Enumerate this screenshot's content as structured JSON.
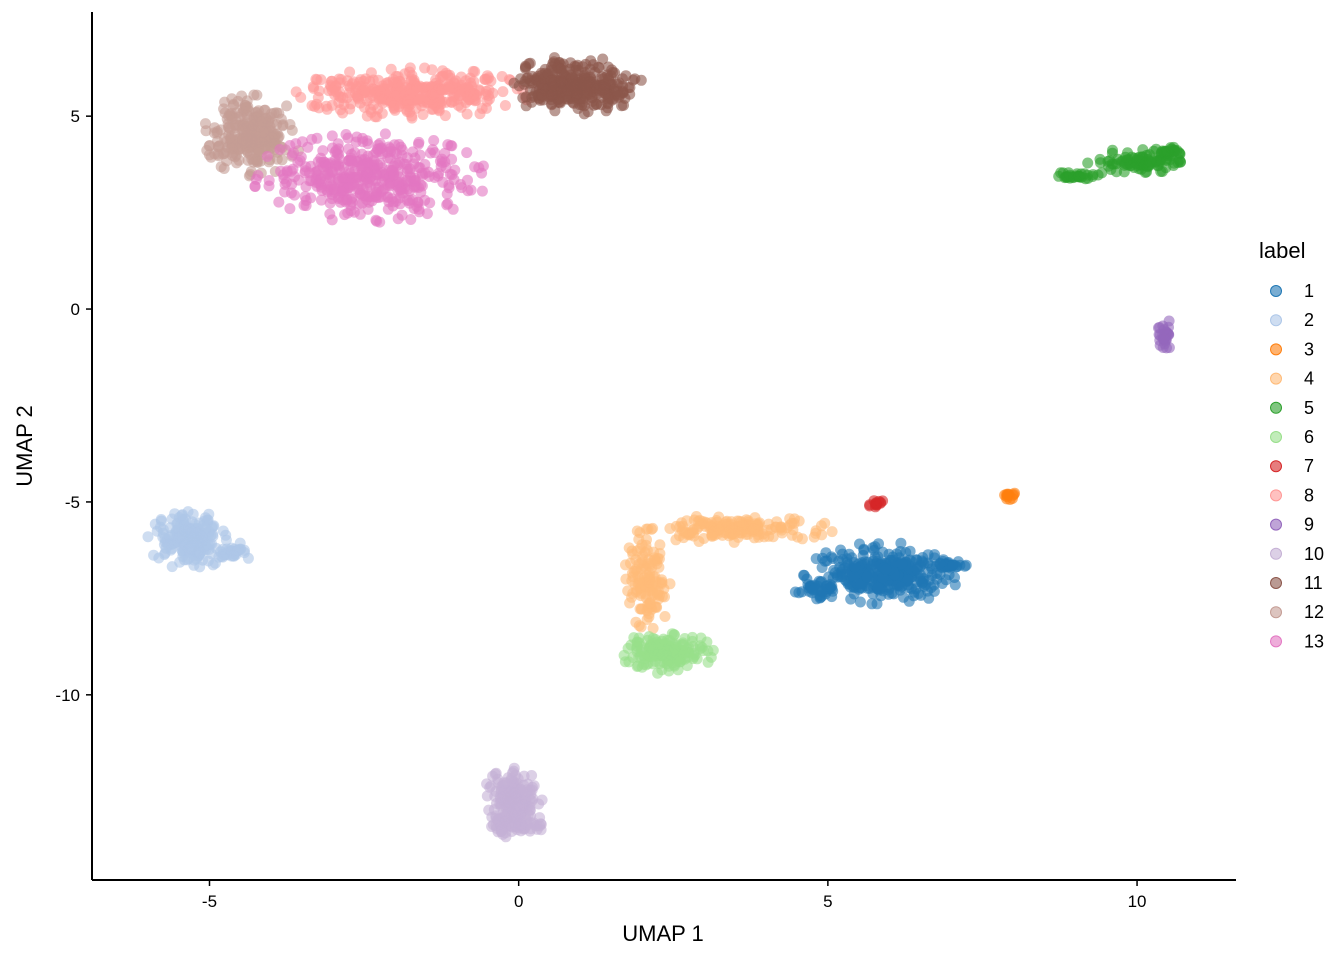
{
  "chart_data": {
    "type": "scatter",
    "title": "",
    "xlabel": "UMAP 1",
    "ylabel": "UMAP 2",
    "xlim": [
      -6.9,
      11.6
    ],
    "ylim": [
      -14.8,
      7.7
    ],
    "xticks": [
      -5,
      0,
      5,
      10
    ],
    "xtick_labels": [
      "-5",
      "0",
      "5",
      "10"
    ],
    "yticks": [
      -10,
      -5,
      0,
      5
    ],
    "ytick_labels": [
      "-10",
      "-5",
      "0",
      "5"
    ],
    "grid": false,
    "legend": {
      "title": "label",
      "position": "right"
    },
    "point_alpha": 0.6,
    "series": [
      {
        "name": "1",
        "color": "#1f77b4",
        "clusters": [
          {
            "cx": 5.9,
            "cy": -6.85,
            "rx": 1.25,
            "ry": 0.8,
            "n": 320
          },
          {
            "cx": 4.8,
            "cy": -7.2,
            "rx": 0.4,
            "ry": 0.35,
            "n": 40
          },
          {
            "cx": 6.9,
            "cy": -6.6,
            "rx": 0.35,
            "ry": 0.15,
            "n": 30
          }
        ]
      },
      {
        "name": "2",
        "color": "#aec7e8",
        "clusters": [
          {
            "cx": -5.3,
            "cy": -6.0,
            "rx": 0.7,
            "ry": 0.75,
            "n": 200
          },
          {
            "cx": -4.6,
            "cy": -6.3,
            "rx": 0.3,
            "ry": 0.25,
            "n": 30
          }
        ]
      },
      {
        "name": "3",
        "color": "#ff7f0e",
        "clusters": [
          {
            "cx": 7.95,
            "cy": -4.85,
            "rx": 0.12,
            "ry": 0.1,
            "n": 12
          }
        ]
      },
      {
        "name": "4",
        "color": "#ffbb78",
        "clusters": [
          {
            "cx": 3.5,
            "cy": -5.7,
            "rx": 1.6,
            "ry": 0.35,
            "n": 160
          },
          {
            "cx": 2.1,
            "cy": -7.0,
            "rx": 0.4,
            "ry": 1.3,
            "n": 120
          }
        ]
      },
      {
        "name": "5",
        "color": "#2ca02c",
        "clusters": [
          {
            "cx": 10.0,
            "cy": 3.8,
            "rx": 0.9,
            "ry": 0.35,
            "n": 90
          },
          {
            "cx": 9.0,
            "cy": 3.45,
            "rx": 0.4,
            "ry": 0.1,
            "n": 30
          },
          {
            "cx": 10.5,
            "cy": 4.05,
            "rx": 0.25,
            "ry": 0.15,
            "n": 25
          }
        ]
      },
      {
        "name": "6",
        "color": "#98df8a",
        "clusters": [
          {
            "cx": 2.4,
            "cy": -8.9,
            "rx": 0.75,
            "ry": 0.55,
            "n": 160
          }
        ]
      },
      {
        "name": "7",
        "color": "#d62728",
        "clusters": [
          {
            "cx": 5.8,
            "cy": -5.05,
            "rx": 0.15,
            "ry": 0.1,
            "n": 14
          }
        ]
      },
      {
        "name": "8",
        "color": "#ff9896",
        "clusters": [
          {
            "cx": -1.7,
            "cy": 5.6,
            "rx": 1.9,
            "ry": 0.65,
            "n": 360
          }
        ]
      },
      {
        "name": "9",
        "color": "#9467bd",
        "clusters": [
          {
            "cx": 10.45,
            "cy": -0.6,
            "rx": 0.12,
            "ry": 0.5,
            "n": 30
          }
        ]
      },
      {
        "name": "10",
        "color": "#c5b0d5",
        "clusters": [
          {
            "cx": -0.1,
            "cy": -12.8,
            "rx": 0.5,
            "ry": 0.9,
            "n": 180
          },
          {
            "cx": 0.0,
            "cy": -13.4,
            "rx": 0.6,
            "ry": 0.3,
            "n": 50
          }
        ]
      },
      {
        "name": "11",
        "color": "#8c564b",
        "clusters": [
          {
            "cx": 0.9,
            "cy": 5.8,
            "rx": 1.1,
            "ry": 0.75,
            "n": 340
          }
        ]
      },
      {
        "name": "12",
        "color": "#c49c94",
        "clusters": [
          {
            "cx": -4.3,
            "cy": 4.5,
            "rx": 0.8,
            "ry": 1.05,
            "n": 260
          }
        ]
      },
      {
        "name": "13",
        "color": "#e377c2",
        "clusters": [
          {
            "cx": -2.4,
            "cy": 3.4,
            "rx": 1.9,
            "ry": 1.15,
            "n": 420
          }
        ]
      }
    ]
  }
}
